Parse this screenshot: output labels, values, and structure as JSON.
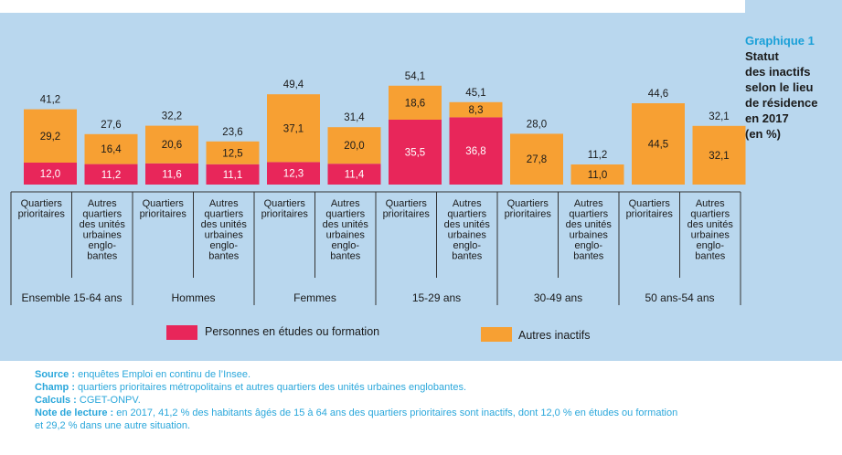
{
  "chart_data": {
    "type": "bar",
    "stacked": true,
    "groups": [
      {
        "label": "Ensemble 15-64 ans"
      },
      {
        "label": "Hommes"
      },
      {
        "label": "Femmes"
      },
      {
        "label": "15-29 ans"
      },
      {
        "label": "30-49 ans"
      },
      {
        "label": "50 ans-54 ans"
      }
    ],
    "categories": [
      "Quartiers prioritaires",
      "Autres quartiers des unités urbaines englobantes",
      "Quartiers prioritaires",
      "Autres quartiers des unités urbaines englobantes",
      "Quartiers prioritaires",
      "Autres quartiers des unités urbaines englobantes",
      "Quartiers prioritaires",
      "Autres quartiers des unités urbaines englobantes",
      "Quartiers prioritaires",
      "Autres quartiers des unités urbaines englobantes",
      "Quartiers prioritaires",
      "Autres quartiers des unités urbaines englobantes"
    ],
    "category_lines": {
      "qp": [
        "Quartiers",
        "prioritaires"
      ],
      "aq": [
        "Autres",
        "quartiers",
        "des unités",
        "urbaines",
        "englo-",
        "bantes"
      ]
    },
    "series": [
      {
        "name": "Personnes en études ou formation",
        "color": "#e8265a",
        "values": [
          12.0,
          11.2,
          11.6,
          11.1,
          12.3,
          11.4,
          35.5,
          36.8,
          null,
          null,
          null,
          null
        ],
        "labels": [
          "12,0",
          "11,2",
          "11,6",
          "11,1",
          "12,3",
          "11,4",
          "35,5",
          "36,8",
          "",
          "",
          "",
          ""
        ]
      },
      {
        "name": "Autres inactifs",
        "color": "#f7a033",
        "values": [
          29.2,
          16.4,
          20.6,
          12.5,
          37.1,
          20.0,
          18.6,
          8.3,
          27.8,
          11.0,
          44.5,
          32.1
        ],
        "labels": [
          "29,2",
          "16,4",
          "20,6",
          "12,5",
          "37,1",
          "20,0",
          "18,6",
          "8,3",
          "27,8",
          "11,0",
          "44,5",
          "32,1"
        ]
      }
    ],
    "totals": [
      41.2,
      27.6,
      32.2,
      23.6,
      49.4,
      31.4,
      54.1,
      45.1,
      28.0,
      11.2,
      44.6,
      32.1
    ],
    "total_labels": [
      "41,2",
      "27,6",
      "32,2",
      "23,6",
      "49,4",
      "31,4",
      "54,1",
      "45,1",
      "28,0",
      "11,2",
      "44,6",
      "32,1"
    ]
  },
  "title": {
    "number": "Graphique 1",
    "lines": [
      "Statut",
      "des inactifs",
      "selon le lieu",
      "de résidence",
      "en 2017",
      "(en %)"
    ]
  },
  "legend": {
    "students": "Personnes en études ou formation",
    "others": "Autres inactifs"
  },
  "notes": {
    "source_label": "Source :",
    "source_text": " enquêtes Emploi en continu de l’Insee.",
    "champ_label": "Champ :",
    "champ_text": " quartiers prioritaires métropolitains et autres quartiers des unités urbaines englobantes.",
    "calculs_label": "Calculs :",
    "calculs_text": " CGET-ONPV.",
    "lecture_label": "Note de lecture :",
    "lecture_text": " en 2017, 41,2 % des habitants âgés de 15 à 64 ans des quartiers prioritaires sont inactifs, dont 12,0 % en études ou formation",
    "lecture_text2": "et 29,2 % dans une autre situation."
  }
}
